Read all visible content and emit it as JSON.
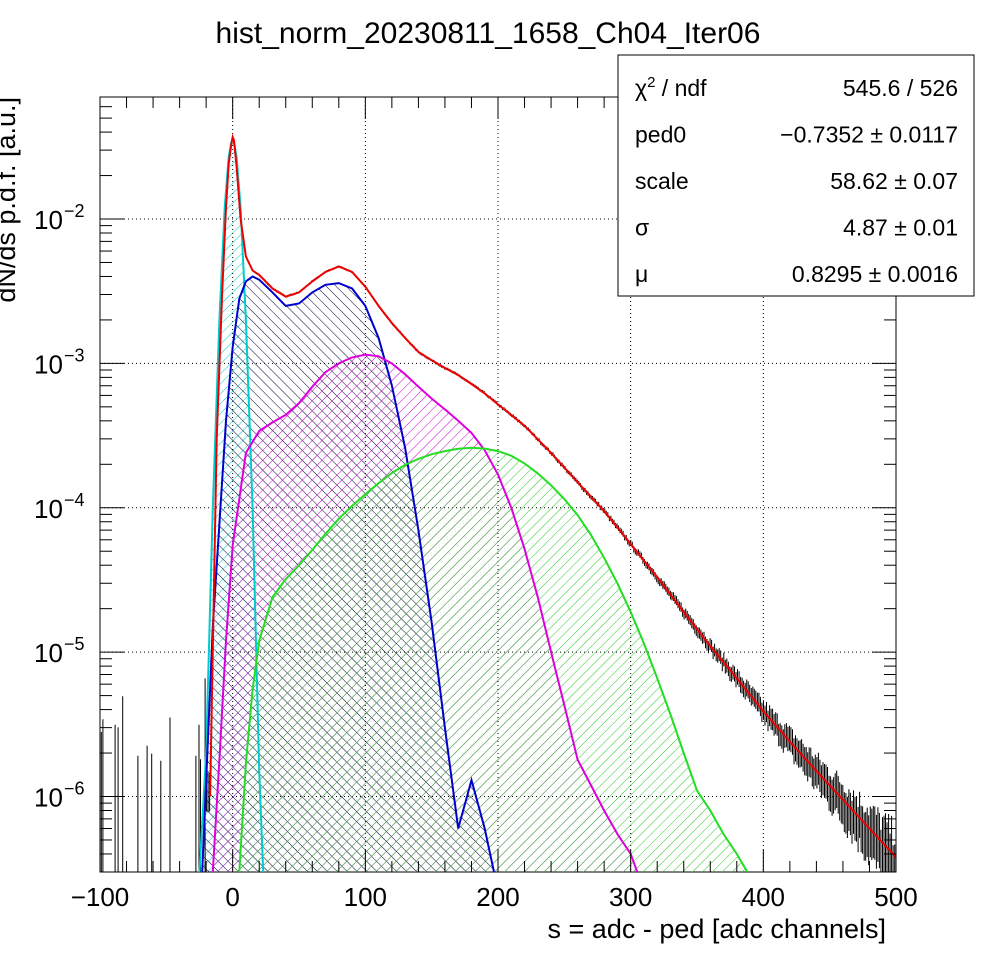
{
  "chart_data": {
    "type": "line",
    "title": "hist_norm_20230811_1658_Ch04_Iter06",
    "xlabel": "s = adc - ped [adc channels]",
    "ylabel": "dN/ds p.d.f. [a.u.]",
    "xlim": [
      -100,
      500
    ],
    "ylim": [
      3e-07,
      0.07
    ],
    "yscale": "log",
    "grid": true,
    "x_ticks": [
      -100,
      0,
      100,
      200,
      300,
      400,
      500
    ],
    "x_tick_labels": [
      "−100",
      "0",
      "100",
      "200",
      "300",
      "400",
      "500"
    ],
    "y_ticks": [
      {
        "value": 1e-06,
        "base": "10",
        "exp": "−6"
      },
      {
        "value": 1e-05,
        "base": "10",
        "exp": "−5"
      },
      {
        "value": 0.0001,
        "base": "10",
        "exp": "−4"
      },
      {
        "value": 0.001,
        "base": "10",
        "exp": "−3"
      },
      {
        "value": 0.01,
        "base": "10",
        "exp": "−2"
      }
    ],
    "series": [
      {
        "color": "#00cccc",
        "fill": "#00cccc",
        "x": [
          -25,
          -20,
          -15,
          -10,
          -6,
          -3,
          -1,
          0,
          1,
          3,
          6,
          10,
          15,
          20,
          23
        ],
        "y": [
          3e-07,
          2e-06,
          0.0001,
          0.002,
          0.012,
          0.027,
          0.034,
          0.036,
          0.034,
          0.027,
          0.012,
          0.002,
          0.0001,
          1.5e-06,
          3e-07
        ]
      },
      {
        "color": "#0000cc",
        "fill": "#000033",
        "x": [
          -23,
          -15,
          -5,
          0,
          5,
          10,
          15,
          20,
          30,
          40,
          50,
          60,
          70,
          80,
          90,
          100,
          110,
          120,
          130,
          140,
          150,
          160,
          170,
          180,
          190,
          197
        ],
        "y": [
          3e-07,
          1.5e-05,
          0.0004,
          0.0013,
          0.0028,
          0.0037,
          0.004,
          0.0038,
          0.0031,
          0.0025,
          0.0026,
          0.0031,
          0.0035,
          0.0036,
          0.0033,
          0.0025,
          0.0015,
          0.0007,
          0.00026,
          7e-05,
          1.6e-05,
          3e-06,
          6e-07,
          1.3e-06,
          6e-07,
          3e-07
        ]
      },
      {
        "color": "#dd00dd",
        "fill": "#cc00cc",
        "x": [
          -15,
          -10,
          -5,
          0,
          10,
          20,
          30,
          40,
          50,
          60,
          70,
          80,
          90,
          100,
          110,
          120,
          130,
          140,
          150,
          160,
          170,
          180,
          190,
          200,
          210,
          220,
          230,
          240,
          250,
          260,
          270,
          280,
          290,
          300,
          305
        ],
        "y": [
          3e-07,
          1.8e-06,
          1.2e-05,
          5.5e-05,
          0.00024,
          0.00034,
          0.00039,
          0.00044,
          0.00053,
          0.00069,
          0.00087,
          0.001,
          0.0011,
          0.00115,
          0.00112,
          0.001,
          0.00084,
          0.00069,
          0.00057,
          0.00048,
          0.0004,
          0.00033,
          0.00025,
          0.00017,
          0.0001,
          5.2e-05,
          2.4e-05,
          1e-05,
          4.3e-06,
          1.8e-06,
          1.2e-06,
          8e-07,
          5.5e-07,
          4e-07,
          3e-07
        ]
      },
      {
        "color": "#22dd22",
        "fill": "#22cc22",
        "x": [
          5,
          10,
          15,
          20,
          30,
          40,
          50,
          60,
          70,
          80,
          90,
          100,
          110,
          120,
          130,
          140,
          150,
          160,
          170,
          180,
          190,
          200,
          210,
          220,
          230,
          240,
          250,
          260,
          270,
          280,
          290,
          300,
          310,
          320,
          330,
          340,
          350,
          360,
          370,
          380,
          388
        ],
        "y": [
          3e-07,
          1.7e-06,
          5.5e-06,
          1.2e-05,
          2.4e-05,
          3.2e-05,
          4e-05,
          5.1e-05,
          6.6e-05,
          8.4e-05,
          0.000103,
          0.000124,
          0.000148,
          0.000174,
          0.000198,
          0.000218,
          0.000235,
          0.000247,
          0.000256,
          0.00026,
          0.000257,
          0.000247,
          0.000229,
          0.000203,
          0.000173,
          0.000143,
          0.000115,
          8.9e-05,
          6.5e-05,
          4.5e-05,
          3e-05,
          1.9e-05,
          1.15e-05,
          6.6e-06,
          3.7e-06,
          2e-06,
          1.1e-06,
          8e-07,
          5.5e-07,
          4e-07,
          3e-07
        ]
      },
      {
        "color": "#ee0000",
        "x": [
          -17,
          -12,
          -8,
          -5,
          -3,
          -1,
          0,
          1,
          3,
          6,
          10,
          15,
          20,
          30,
          40,
          50,
          60,
          70,
          80,
          90,
          100,
          110,
          120,
          130,
          140,
          150,
          160,
          170,
          180,
          190,
          200,
          220,
          240,
          260,
          280,
          300,
          320,
          340,
          360,
          380,
          400,
          420,
          440,
          460,
          480,
          500
        ],
        "y": [
          1e-06,
          0.0003,
          0.003,
          0.012,
          0.024,
          0.033,
          0.037,
          0.035,
          0.023,
          0.01,
          0.0055,
          0.0044,
          0.0041,
          0.0033,
          0.0029,
          0.0031,
          0.0037,
          0.0043,
          0.0047,
          0.0043,
          0.0034,
          0.0025,
          0.0019,
          0.0015,
          0.0012,
          0.00105,
          0.00093,
          0.00083,
          0.00072,
          0.00062,
          0.00052,
          0.00037,
          0.00024,
          0.00015,
          9.5e-05,
          5.6e-05,
          3.3e-05,
          1.9e-05,
          1.1e-05,
          6.6e-06,
          3.9e-06,
          2.4e-06,
          1.5e-06,
          9.5e-07,
          6e-07,
          3.8e-07
        ]
      }
    ],
    "stats_box": {
      "rows": [
        {
          "label": "χ",
          "label_sup": "2",
          "label_rest": " / ndf",
          "value": "545.6 / 526"
        },
        {
          "label": "ped0",
          "label_sup": "",
          "label_rest": "",
          "value": "−0.7352 ± 0.0117"
        },
        {
          "label": "scale",
          "label_sup": "",
          "label_rest": "",
          "value": "58.62 ± 0.07"
        },
        {
          "label": "σ",
          "label_sup": "",
          "label_rest": "",
          "value": "4.87 ± 0.01"
        },
        {
          "label": "μ",
          "label_sup": "",
          "label_rest": "",
          "value": "0.8295 ± 0.0016"
        }
      ]
    }
  }
}
